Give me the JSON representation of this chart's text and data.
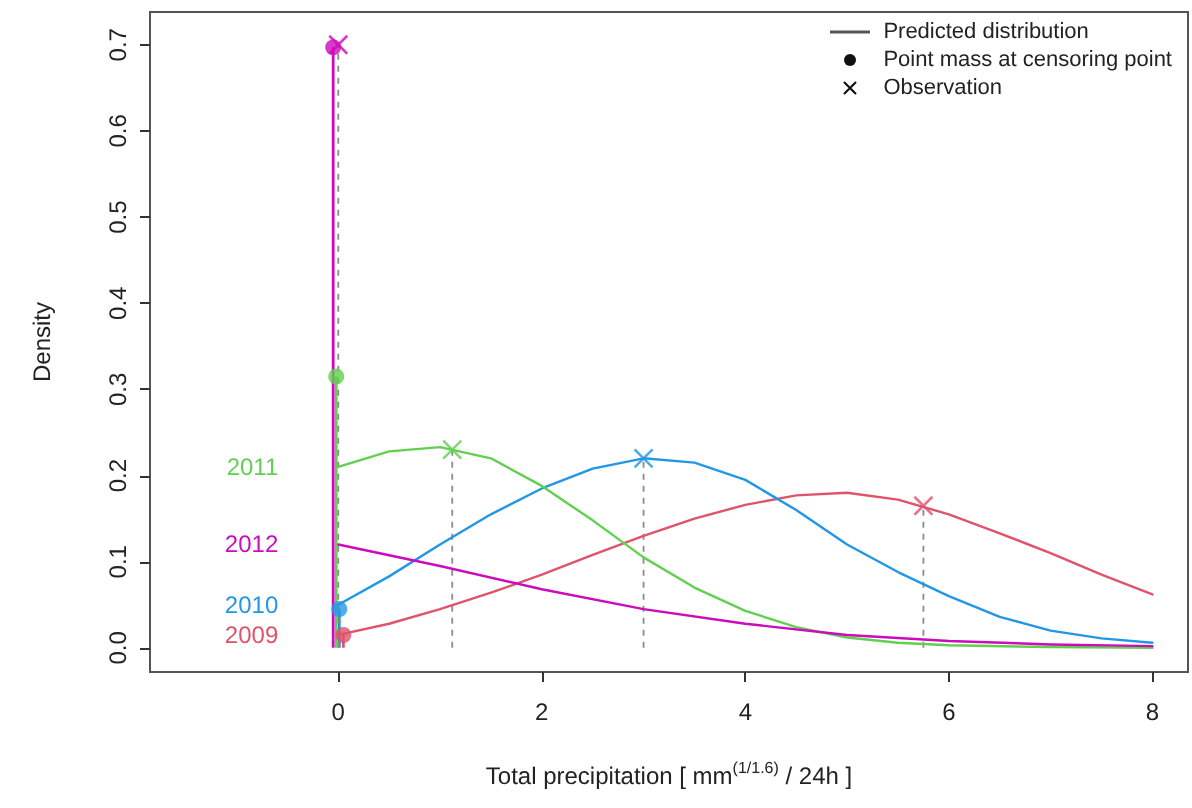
{
  "chart_data": {
    "type": "line",
    "xlabel": "Total precipitation [ mm$^{(1/1.6)}$ / 24h ]",
    "ylabel": "Density",
    "xlim": [
      -1.85,
      8.35
    ],
    "ylim": [
      -0.028,
      0.738
    ],
    "xticks": [
      0,
      2,
      4,
      6,
      8
    ],
    "yticks": [
      {
        "value": 0,
        "label": "0.0"
      },
      {
        "value": 0.1,
        "label": "0.1"
      },
      {
        "value": 0.2,
        "label": "0.2"
      },
      {
        "value": 0.3,
        "label": "0.3"
      },
      {
        "value": 0.4,
        "label": "0.4"
      },
      {
        "value": 0.5,
        "label": "0.5"
      },
      {
        "value": 0.6,
        "label": "0.6"
      },
      {
        "value": 0.7,
        "label": "0.7"
      }
    ],
    "series": [
      {
        "name": "2009",
        "marker": "none",
        "color": "#df536b",
        "x": [
          0,
          0.5,
          1,
          1.5,
          2,
          2.5,
          3,
          3.5,
          4,
          4.5,
          5,
          5.5,
          6,
          6.5,
          7,
          7.5,
          8
        ],
        "values": [
          0.015,
          0.028,
          0.045,
          0.064,
          0.085,
          0.108,
          0.13,
          0.15,
          0.166,
          0.177,
          0.18,
          0.172,
          0.155,
          0.133,
          0.11,
          0.085,
          0.062
        ]
      },
      {
        "name": "2010",
        "marker": "none",
        "color": "#2297e6",
        "x": [
          0,
          0.5,
          1,
          1.5,
          2,
          2.5,
          3,
          3.5,
          4,
          4.5,
          5,
          5.5,
          6,
          6.5,
          7,
          7.5,
          8
        ],
        "values": [
          0.05,
          0.083,
          0.12,
          0.155,
          0.185,
          0.208,
          0.22,
          0.215,
          0.195,
          0.16,
          0.12,
          0.088,
          0.06,
          0.036,
          0.02,
          0.011,
          0.006
        ]
      },
      {
        "name": "2011",
        "marker": "none",
        "color": "#61d04f",
        "x": [
          0,
          0.5,
          1,
          1.5,
          2,
          2.5,
          3,
          3.5,
          4,
          4.5,
          5,
          5.5,
          6,
          7,
          8
        ],
        "values": [
          0.21,
          0.228,
          0.233,
          0.22,
          0.188,
          0.148,
          0.105,
          0.07,
          0.043,
          0.024,
          0.012,
          0.006,
          0.003,
          0.001,
          0
        ]
      },
      {
        "name": "2012",
        "marker": "none",
        "color": "#cd0bbc",
        "x": [
          0,
          1,
          2,
          3,
          4,
          5,
          6,
          7,
          8
        ],
        "values": [
          0.12,
          0.095,
          0.068,
          0.045,
          0.028,
          0.015,
          0.008,
          0.004,
          0.002
        ]
      },
      {
        "type": "lollipop",
        "marker": "circle",
        "color": "#df536b",
        "x": [
          0.05
        ],
        "values": [
          0.015
        ]
      },
      {
        "type": "lollipop",
        "marker": "circle",
        "color": "#2297e6",
        "x": [
          0.01
        ],
        "values": [
          0.045
        ]
      },
      {
        "type": "lollipop",
        "marker": "circle",
        "color": "#61d04f",
        "x": [
          -0.02
        ],
        "values": [
          0.315
        ]
      },
      {
        "type": "lollipop",
        "marker": "circle",
        "color": "#cd0bbc",
        "x": [
          -0.05
        ],
        "values": [
          0.697
        ]
      },
      {
        "type": "lollipop",
        "marker": "cross",
        "line_style": "dashed",
        "color": "#df536b",
        "x": [
          5.75
        ],
        "values": [
          0.165
        ]
      },
      {
        "type": "lollipop",
        "marker": "cross",
        "line_style": "dashed",
        "color": "#2297e6",
        "x": [
          3.0
        ],
        "values": [
          0.22
        ]
      },
      {
        "type": "lollipop",
        "marker": "cross",
        "line_style": "dashed",
        "color": "#61d04f",
        "x": [
          1.12
        ],
        "values": [
          0.23
        ]
      },
      {
        "type": "lollipop",
        "marker": "cross",
        "line_style": "dashed",
        "color": "#cd0bbc",
        "x": [
          0.0
        ],
        "values": [
          0.7
        ]
      }
    ],
    "annotations": [
      "Predicted distribution",
      "Point mass at censoring point",
      "Observation"
    ]
  }
}
